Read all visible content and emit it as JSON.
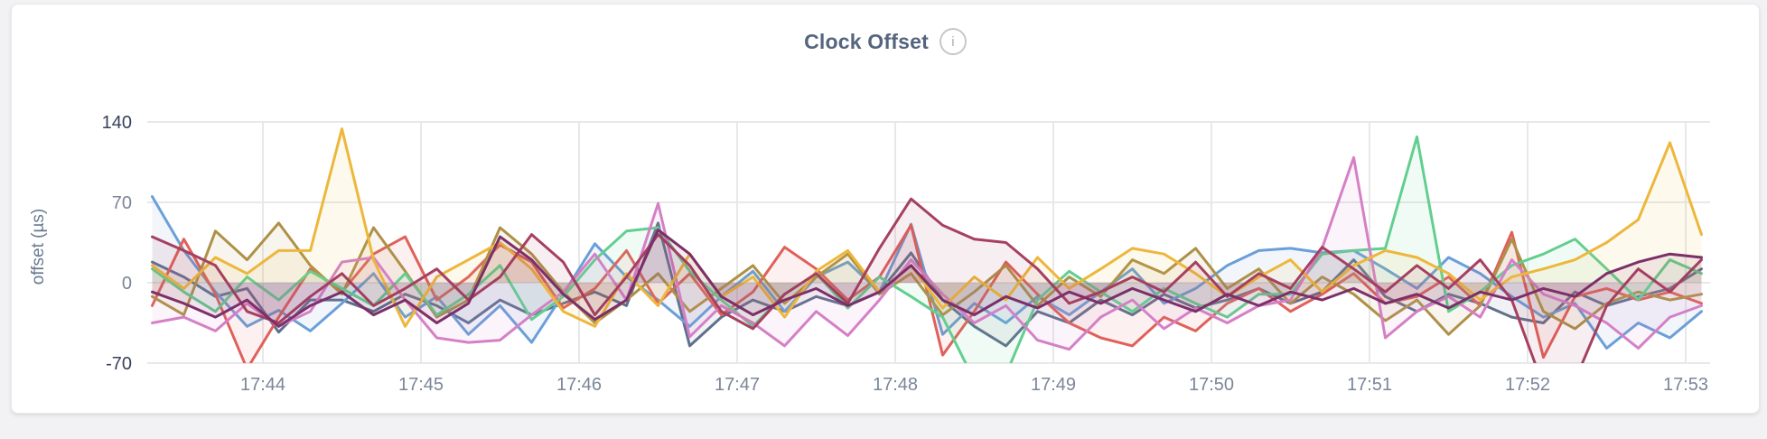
{
  "header": {
    "title": "Clock Offset",
    "info_glyph": "i"
  },
  "chart_data": {
    "type": "line",
    "title": "Clock Offset",
    "xlabel": "",
    "ylabel": "offset (µs)",
    "legend": "none",
    "grid": true,
    "ylim": [
      -70,
      140
    ],
    "yticks": [
      {
        "v": 140,
        "label": "140",
        "emphasis": true
      },
      {
        "v": 70,
        "label": "70",
        "emphasis": false
      },
      {
        "v": 0,
        "label": "0",
        "emphasis": false
      },
      {
        "v": -70,
        "label": "-70",
        "emphasis": true
      }
    ],
    "x_ticks": [
      {
        "t": 0,
        "label": "17:44"
      },
      {
        "t": 1,
        "label": "17:45"
      },
      {
        "t": 2,
        "label": "17:46"
      },
      {
        "t": 3,
        "label": "17:47"
      },
      {
        "t": 4,
        "label": "17:48"
      },
      {
        "t": 5,
        "label": "17:49"
      },
      {
        "t": 6,
        "label": "17:50"
      },
      {
        "t": 7,
        "label": "17:51"
      },
      {
        "t": 8,
        "label": "17:52"
      },
      {
        "t": 9,
        "label": "17:53"
      }
    ],
    "x_start_min": -0.7,
    "x_step_min": 0.2,
    "fill": "tozeroy",
    "fill_opacity": 0.09,
    "line_width": 3,
    "colors": {
      "grid": "#e8e8ea",
      "axis_text_minor": "#7a8699",
      "axis_text_major": "#36425c"
    },
    "series": [
      {
        "name": "series-slate",
        "color": "#60708c",
        "values": [
          18,
          5,
          -12,
          -5,
          -43,
          -15,
          -15,
          -25,
          -10,
          -20,
          -35,
          -15,
          -28,
          -18,
          -8,
          -20,
          52,
          -55,
          -30,
          -15,
          -25,
          -12,
          -20,
          -8,
          26,
          -15,
          -38,
          -55,
          -25,
          -35,
          -15,
          -28,
          -10,
          -22,
          -15,
          -5,
          -18,
          -8,
          20,
          -12,
          -25,
          -10,
          -18,
          -30,
          -35,
          -8,
          -20,
          -12,
          -5,
          12
        ]
      },
      {
        "name": "series-blue",
        "color": "#6a9fd8",
        "values": [
          75,
          28,
          -8,
          -38,
          -24,
          -42,
          -18,
          8,
          -30,
          -12,
          -45,
          -20,
          -52,
          -10,
          34,
          5,
          -15,
          -38,
          -12,
          10,
          -25,
          5,
          18,
          -8,
          51,
          -45,
          -18,
          -35,
          -12,
          -28,
          -8,
          12,
          -18,
          -5,
          15,
          28,
          30,
          26,
          28,
          12,
          -5,
          22,
          8,
          -12,
          -30,
          -18,
          -57,
          -35,
          -48,
          -25
        ]
      },
      {
        "name": "series-red",
        "color": "#e0605a",
        "values": [
          -20,
          38,
          -10,
          -75,
          -30,
          12,
          -8,
          25,
          40,
          -15,
          5,
          33,
          18,
          -22,
          -5,
          28,
          -18,
          8,
          -28,
          -8,
          31,
          12,
          -15,
          5,
          50,
          -63,
          -25,
          18,
          -10,
          -35,
          -48,
          -55,
          -30,
          -42,
          -18,
          -5,
          -25,
          -10,
          8,
          -18,
          -12,
          5,
          -20,
          44,
          -65,
          -12,
          -5,
          -15,
          -8,
          -18
        ]
      },
      {
        "name": "series-olive",
        "color": "#ae9148",
        "values": [
          -12,
          -28,
          45,
          20,
          52,
          15,
          -10,
          48,
          10,
          -30,
          -15,
          48,
          25,
          -8,
          -35,
          -15,
          8,
          -25,
          -5,
          15,
          -18,
          5,
          25,
          -10,
          8,
          -28,
          -8,
          15,
          -20,
          5,
          -12,
          20,
          8,
          30,
          -5,
          12,
          -18,
          5,
          -10,
          -33,
          -15,
          -45,
          -20,
          38,
          -25,
          -40,
          -18,
          -8,
          -15,
          -10
        ]
      },
      {
        "name": "series-green",
        "color": "#62ce8f",
        "values": [
          12,
          -8,
          -25,
          5,
          -15,
          10,
          -5,
          -20,
          8,
          -28,
          -10,
          15,
          -32,
          -12,
          20,
          45,
          48,
          10,
          -15,
          -38,
          -10,
          8,
          -22,
          5,
          -12,
          -30,
          -85,
          -80,
          -15,
          10,
          -8,
          -25,
          -5,
          -18,
          -30,
          -10,
          -10,
          25,
          28,
          30,
          127,
          -25,
          -8,
          15,
          25,
          38,
          12,
          -15,
          20,
          8
        ]
      },
      {
        "name": "series-orchid",
        "color": "#d580c6",
        "values": [
          -35,
          -30,
          -42,
          -18,
          -38,
          -25,
          18,
          22,
          -15,
          -48,
          -52,
          -50,
          -28,
          -8,
          25,
          -15,
          69,
          -47,
          -20,
          -35,
          -55,
          -25,
          -46,
          -15,
          20,
          -10,
          -35,
          -20,
          -50,
          -58,
          -30,
          -15,
          -40,
          -22,
          -35,
          -20,
          -15,
          30,
          109,
          -48,
          -25,
          -12,
          -30,
          20,
          -10,
          -20,
          -35,
          -57,
          -30,
          -20
        ]
      },
      {
        "name": "series-gold",
        "color": "#edb73c",
        "values": [
          15,
          -5,
          22,
          8,
          28,
          28,
          134,
          20,
          -38,
          5,
          20,
          35,
          12,
          -25,
          -38,
          8,
          -20,
          25,
          -12,
          5,
          -30,
          10,
          28,
          -8,
          15,
          -22,
          5,
          -15,
          22,
          -5,
          12,
          30,
          25,
          8,
          -12,
          5,
          20,
          -8,
          15,
          28,
          22,
          8,
          -15,
          5,
          12,
          20,
          35,
          55,
          122,
          42
        ]
      },
      {
        "name": "series-maroon",
        "color": "#a64060",
        "values": [
          40,
          28,
          15,
          -25,
          -35,
          -12,
          8,
          -20,
          -5,
          12,
          -15,
          5,
          42,
          18,
          -28,
          5,
          42,
          15,
          -25,
          -40,
          -10,
          8,
          -18,
          30,
          73,
          50,
          38,
          35,
          12,
          -18,
          -8,
          5,
          -8,
          18,
          -12,
          8,
          -5,
          31,
          12,
          -8,
          15,
          -5,
          20,
          -15,
          -90,
          -85,
          -20,
          12,
          -8,
          20
        ]
      },
      {
        "name": "series-purple",
        "color": "#7c2f68",
        "values": [
          -8,
          -18,
          -30,
          -15,
          -38,
          -20,
          -8,
          -28,
          -15,
          -35,
          -18,
          40,
          20,
          -10,
          -32,
          -15,
          46,
          25,
          -12,
          -28,
          -15,
          -5,
          -20,
          -8,
          15,
          -15,
          -28,
          -12,
          -22,
          -8,
          -18,
          -5,
          -15,
          -25,
          -10,
          -20,
          -8,
          -15,
          -5,
          -18,
          -10,
          -22,
          -8,
          -15,
          -5,
          -12,
          8,
          18,
          25,
          22
        ]
      }
    ]
  }
}
